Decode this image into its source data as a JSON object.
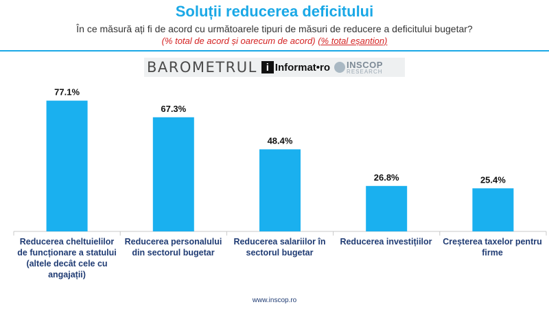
{
  "header": {
    "title": "Soluții reducerea deficitului",
    "subtitle": "În ce măsură ați fi de acord cu următoarele tipuri de măsuri de reducere a deficitului bugetar?",
    "note_main": "(% total de acord și oarecum de acord)",
    "note_secondary": "(% total eșantion)"
  },
  "logos": {
    "barometrul": "BAROMETRUL",
    "informat_icon": "i",
    "informat": "Informat•ro",
    "inscop": "INSCOP",
    "inscop_sub": "RESEARCH"
  },
  "colors": {
    "bar": "#1ab0ef",
    "title": "#1aa8e6",
    "category_text": "#1f3b73",
    "note": "#d42121"
  },
  "chart_data": {
    "type": "bar",
    "categories": [
      "Reducerea cheltuielilor de funcționare a statului (altele decât cele cu angajații)",
      "Reducerea personalului din sectorul bugetar",
      "Reducerea salariilor în sectorul bugetar",
      "Reducerea investițiilor",
      "Creșterea taxelor pentru firme"
    ],
    "values": [
      77.1,
      67.3,
      48.4,
      26.8,
      25.4
    ],
    "data_labels": [
      "77.1%",
      "67.3%",
      "48.4%",
      "26.8%",
      "25.4%"
    ],
    "ylim": [
      0,
      100
    ],
    "grid": false,
    "legend": "none"
  },
  "footer": {
    "url": "www.inscop.ro"
  }
}
